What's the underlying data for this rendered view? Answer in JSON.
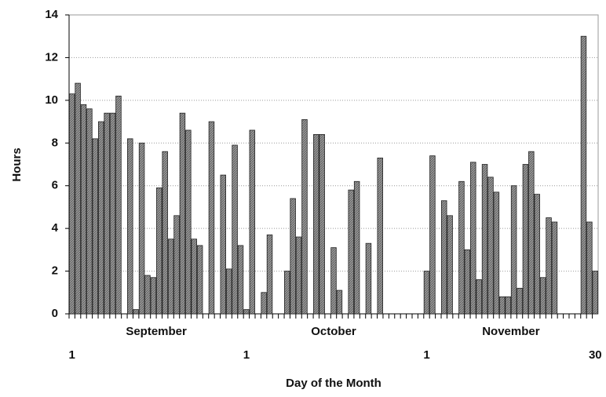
{
  "chart_data": {
    "type": "bar",
    "y_label": "Hours",
    "x_label": "Day of the Month",
    "categories": [
      "1",
      null,
      null,
      null,
      null,
      null,
      null,
      null,
      null,
      null,
      null,
      null,
      null,
      null,
      null,
      null,
      null,
      null,
      null,
      null,
      null,
      null,
      null,
      null,
      null,
      null,
      null,
      null,
      null,
      null,
      "1",
      null,
      null,
      null,
      null,
      null,
      null,
      null,
      null,
      null,
      null,
      null,
      null,
      null,
      null,
      null,
      null,
      null,
      null,
      null,
      null,
      null,
      null,
      null,
      null,
      null,
      null,
      null,
      null,
      null,
      null,
      "1",
      null,
      null,
      null,
      null,
      null,
      null,
      null,
      null,
      null,
      null,
      null,
      null,
      null,
      null,
      null,
      null,
      null,
      null,
      null,
      null,
      null,
      null,
      null,
      null,
      null,
      null,
      null,
      null,
      "30"
    ],
    "month_labels": [
      "September",
      "October",
      "November"
    ],
    "values": [
      10.3,
      10.8,
      9.8,
      9.6,
      8.2,
      9.0,
      9.4,
      9.4,
      10.2,
      0,
      8.2,
      0.2,
      8.0,
      1.8,
      1.7,
      5.9,
      7.6,
      3.5,
      4.6,
      9.4,
      8.6,
      3.5,
      3.2,
      0,
      9.0,
      0,
      6.5,
      2.1,
      7.9,
      3.2,
      0.2,
      8.6,
      0,
      1.0,
      3.7,
      0,
      0,
      2.0,
      5.4,
      3.6,
      9.1,
      0,
      8.4,
      8.4,
      0,
      3.1,
      1.1,
      0,
      5.8,
      6.2,
      0,
      3.3,
      0,
      7.3,
      0,
      0,
      0,
      0,
      0,
      0,
      0,
      2.0,
      7.4,
      0,
      5.3,
      4.6,
      0,
      6.2,
      3.0,
      7.1,
      1.6,
      7.0,
      6.4,
      5.7,
      0.8,
      0.8,
      6.0,
      1.2,
      7.0,
      7.6,
      5.6,
      1.7,
      4.5,
      4.3,
      0,
      0,
      0,
      0,
      13.0,
      4.3,
      2.0
    ],
    "color": "#8c8c8c",
    "ylim": [
      0,
      14
    ],
    "yticks": [
      0,
      2,
      4,
      6,
      8,
      10,
      12,
      14
    ],
    "grid": true
  }
}
